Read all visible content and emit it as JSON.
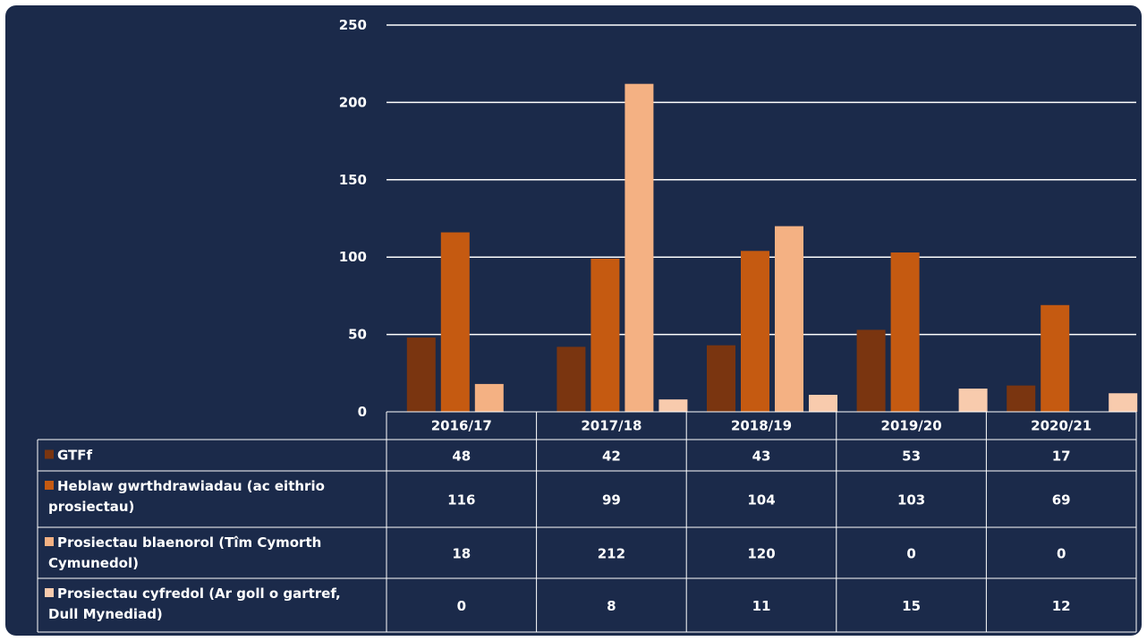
{
  "chart_data": {
    "type": "bar",
    "categories": [
      "2016/17",
      "2017/18",
      "2018/19",
      "2019/20",
      "2020/21"
    ],
    "series": [
      {
        "name": "GTFf",
        "values": [
          48,
          42,
          43,
          53,
          17
        ],
        "color": "#7a3510"
      },
      {
        "name": "Heblaw gwrthdrawiadau (ac eithrio prosiectau)",
        "values": [
          116,
          99,
          104,
          103,
          69
        ],
        "color": "#c55a11"
      },
      {
        "name": "Prosiectau blaenorol (Tîm Cymorth Cymunedol)",
        "values": [
          18,
          212,
          120,
          0,
          0
        ],
        "color": "#f4b183"
      },
      {
        "name": "Prosiectau cyfredol (Ar goll o gartref, Dull Mynediad)",
        "values": [
          0,
          8,
          11,
          15,
          12
        ],
        "color": "#f8cbad"
      }
    ],
    "legend_lines": [
      [
        "GTFf"
      ],
      [
        "Heblaw gwrthdrawiadau (ac eithrio",
        "prosiectau)"
      ],
      [
        "Prosiectau blaenorol (Tîm Cymorth",
        "Cymunedol)"
      ],
      [
        "Prosiectau cyfredol (Ar goll o gartref,",
        "Dull Mynediad)"
      ]
    ],
    "yticks": [
      "0",
      "50",
      "100",
      "150",
      "200",
      "250"
    ],
    "ylim": [
      0,
      250
    ],
    "grid": true,
    "data_table": true,
    "background": "#1b2a4a",
    "gridline_color": "#ffffff"
  }
}
